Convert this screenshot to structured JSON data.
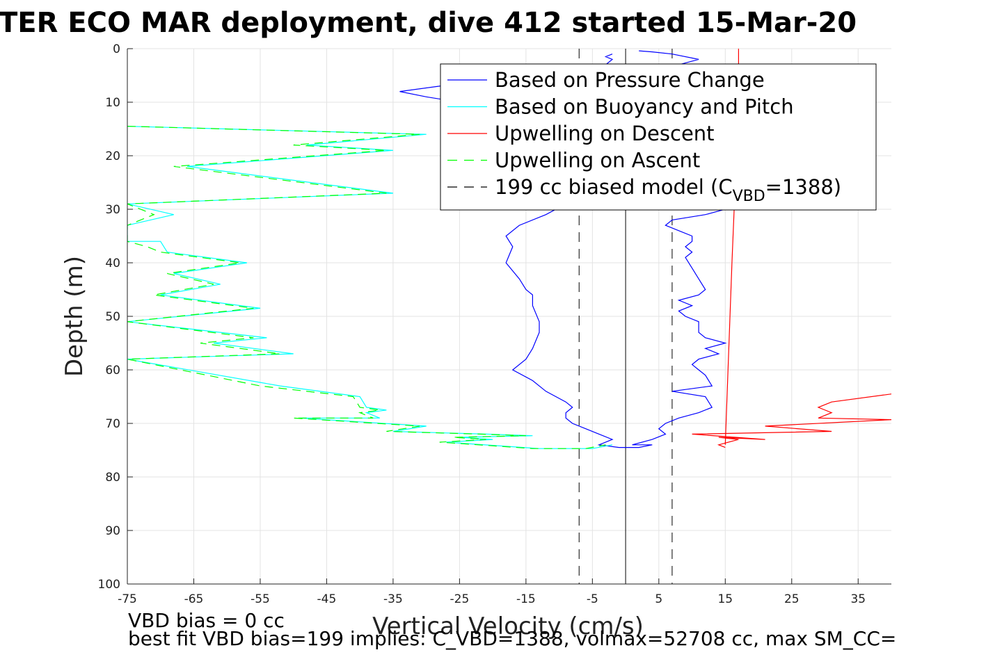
{
  "figure": {
    "title": "TER ECO MAR deployment, dive 412 started 15-Mar-20",
    "footnote_1": "VBD bias = 0 cc",
    "footnote_2": "best fit VBD bias=199 implies: C_VBD=1388, volmax=52708 cc, max SM_CC="
  },
  "chart_data": {
    "type": "line",
    "xlabel": "Vertical Velocity (cm/s)",
    "ylabel": "Depth (m)",
    "xlim": [
      -75,
      40
    ],
    "ylim": [
      0,
      100
    ],
    "y_reversed": true,
    "grid": true,
    "xticks": [
      -75,
      -65,
      -55,
      -45,
      -35,
      -25,
      -15,
      -5,
      5,
      15,
      25,
      35
    ],
    "yticks": [
      0,
      10,
      20,
      30,
      40,
      50,
      60,
      70,
      80,
      90,
      100
    ],
    "legend": {
      "placement": "top-right",
      "entries": [
        {
          "text": "Based on Pressure Change",
          "color": "#0000ff",
          "style": "solid"
        },
        {
          "text": "Based on Buoyancy and Pitch",
          "color": "#00ffff",
          "style": "solid"
        },
        {
          "text": "Upwelling on Descent",
          "color": "#ff0000",
          "style": "solid"
        },
        {
          "text": "Upwelling on Ascent",
          "color": "#00ff00",
          "style": "dashed"
        },
        {
          "text": "199 cc biased model (C",
          "sub": "VBD",
          "suffix": "=1388)",
          "color": "#000000",
          "style": "dashed"
        }
      ]
    },
    "series": [
      {
        "name": "Based on Pressure Change",
        "color": "#0000ff",
        "style": "solid",
        "points": [
          [
            -2,
            1
          ],
          [
            -3,
            1.5
          ],
          [
            -2,
            2
          ],
          [
            -3,
            3
          ],
          [
            -4,
            4
          ],
          [
            -8,
            5
          ],
          [
            -15,
            5.5
          ],
          [
            -22,
            6
          ],
          [
            -28,
            7
          ],
          [
            -34,
            8
          ],
          [
            -30,
            9
          ],
          [
            -25,
            10
          ],
          [
            -22,
            11
          ],
          [
            -20,
            12
          ],
          [
            -18,
            14
          ],
          [
            -15,
            16
          ],
          [
            -12,
            18
          ],
          [
            -10,
            20
          ],
          [
            -9,
            25
          ],
          [
            -9,
            29
          ],
          [
            -12,
            31
          ],
          [
            -16,
            33
          ],
          [
            -18,
            35
          ],
          [
            -17,
            37
          ],
          [
            -18,
            40
          ],
          [
            -16,
            43
          ],
          [
            -15,
            45
          ],
          [
            -14,
            46
          ],
          [
            -14,
            48
          ],
          [
            -13,
            51
          ],
          [
            -13,
            53
          ],
          [
            -14,
            56
          ],
          [
            -15,
            58
          ],
          [
            -17,
            60
          ],
          [
            -14,
            62
          ],
          [
            -12,
            64
          ],
          [
            -9,
            66
          ],
          [
            -8,
            67
          ],
          [
            -9,
            68
          ],
          [
            -9,
            69
          ],
          [
            -8,
            70
          ],
          [
            -6,
            71
          ],
          [
            -4,
            72
          ],
          [
            -2,
            73
          ],
          [
            -4,
            74
          ],
          [
            -1,
            74.5
          ],
          [
            2,
            74.5
          ],
          [
            4,
            74
          ],
          [
            1,
            74
          ],
          [
            4,
            73
          ],
          [
            6,
            72
          ],
          [
            5,
            71
          ],
          [
            6,
            70
          ],
          [
            8,
            69
          ],
          [
            11,
            68
          ],
          [
            13,
            67
          ],
          [
            12,
            65
          ],
          [
            7,
            64
          ],
          [
            13,
            63
          ],
          [
            12,
            61
          ],
          [
            11,
            60
          ],
          [
            10,
            59
          ],
          [
            11,
            58
          ],
          [
            14,
            57
          ],
          [
            12,
            56
          ],
          [
            15,
            55
          ],
          [
            12,
            54
          ],
          [
            11,
            53
          ],
          [
            11,
            51
          ],
          [
            9,
            50
          ],
          [
            8,
            49
          ],
          [
            10,
            48
          ],
          [
            8,
            47
          ],
          [
            11,
            46
          ],
          [
            12,
            45
          ],
          [
            11,
            43
          ],
          [
            10,
            41
          ],
          [
            9,
            39
          ],
          [
            10,
            38
          ],
          [
            9,
            37
          ],
          [
            10,
            36
          ],
          [
            10,
            35
          ],
          [
            8,
            34
          ],
          [
            6,
            33
          ],
          [
            7,
            32
          ],
          [
            12,
            31
          ],
          [
            15,
            30
          ],
          [
            18,
            28
          ],
          [
            20,
            26
          ],
          [
            22,
            22
          ],
          [
            24,
            20
          ],
          [
            22,
            17
          ],
          [
            20,
            14
          ],
          [
            18,
            12
          ],
          [
            16,
            10
          ],
          [
            14,
            8
          ],
          [
            13,
            6
          ],
          [
            12,
            5
          ],
          [
            10,
            4
          ],
          [
            8,
            3
          ],
          [
            11,
            2
          ],
          [
            7,
            1
          ],
          [
            4,
            0.6
          ],
          [
            2,
            0.4
          ]
        ]
      },
      {
        "name": "Based on Buoyancy and Pitch",
        "color": "#00ffff",
        "style": "solid",
        "points": [
          [
            -75,
            14.5
          ],
          [
            -30,
            16
          ],
          [
            -48,
            18
          ],
          [
            -35,
            19
          ],
          [
            -66,
            22
          ],
          [
            -35,
            27
          ],
          [
            -75,
            29
          ],
          [
            -68,
            31
          ],
          [
            -75,
            33
          ],
          [
            -75,
            36
          ],
          [
            -70,
            36
          ],
          [
            -69,
            38
          ],
          [
            -57,
            40
          ],
          [
            -68,
            42
          ],
          [
            -61,
            44
          ],
          [
            -70,
            46
          ],
          [
            -55,
            48.5
          ],
          [
            -75,
            51
          ],
          [
            -54,
            54
          ],
          [
            -62,
            55
          ],
          [
            -50,
            57
          ],
          [
            -75,
            58
          ],
          [
            -52,
            63
          ],
          [
            -40,
            65
          ],
          [
            -39,
            67
          ],
          [
            -36,
            67.5
          ],
          [
            -39,
            68
          ],
          [
            -37,
            69
          ],
          [
            -49,
            69
          ],
          [
            -30,
            70.5
          ],
          [
            -35,
            71.5
          ],
          [
            -21,
            72
          ],
          [
            -14,
            72.3
          ],
          [
            -25,
            72.6
          ],
          [
            -20,
            73
          ],
          [
            -27,
            73.5
          ],
          [
            -13,
            74.7
          ],
          [
            -5,
            74.7
          ],
          [
            -2,
            74
          ]
        ]
      },
      {
        "name": "Upwelling on Descent",
        "color": "#ff0000",
        "style": "solid",
        "points": [
          [
            15,
            74.5
          ],
          [
            14,
            74
          ],
          [
            17,
            73
          ],
          [
            14,
            72.6
          ],
          [
            21,
            73
          ],
          [
            10,
            72
          ],
          [
            31,
            71.5
          ],
          [
            21,
            70.5
          ],
          [
            40,
            69.3
          ],
          [
            29,
            69
          ],
          [
            31,
            68
          ],
          [
            29,
            67
          ],
          [
            31,
            66
          ],
          [
            40,
            64.5
          ]
        ]
      },
      {
        "name": "Upwelling on Descent (tail)",
        "color": "#ff0000",
        "style": "solid",
        "points": [
          [
            15,
            74
          ],
          [
            16,
            40
          ],
          [
            17,
            10
          ],
          [
            17,
            0
          ]
        ]
      },
      {
        "name": "Upwelling on Ascent",
        "color": "#00ff00",
        "style": "dashed",
        "points": [
          [
            -75,
            14.5
          ],
          [
            -31,
            16
          ],
          [
            -50,
            18
          ],
          [
            -36,
            19
          ],
          [
            -68,
            22
          ],
          [
            -36,
            27
          ],
          [
            -75,
            29
          ],
          [
            -71,
            31
          ],
          [
            -75,
            33
          ],
          [
            -75,
            36
          ],
          [
            -72,
            37
          ],
          [
            -70,
            38
          ],
          [
            -58,
            40
          ],
          [
            -69,
            42
          ],
          [
            -62,
            44
          ],
          [
            -71,
            46
          ],
          [
            -56,
            48.5
          ],
          [
            -75,
            51
          ],
          [
            -56,
            54
          ],
          [
            -64,
            55
          ],
          [
            -52,
            57
          ],
          [
            -75,
            58
          ],
          [
            -55,
            63
          ],
          [
            -41,
            65
          ],
          [
            -40,
            67
          ],
          [
            -37,
            67.5
          ],
          [
            -40,
            68
          ],
          [
            -38,
            69
          ],
          [
            -50,
            69
          ],
          [
            -31,
            70.5
          ],
          [
            -36,
            71.5
          ],
          [
            -22,
            72
          ],
          [
            -15,
            72.3
          ],
          [
            -26,
            72.6
          ],
          [
            -21,
            73
          ],
          [
            -28,
            73.5
          ],
          [
            -14,
            74.7
          ],
          [
            -6,
            74.7
          ],
          [
            -3,
            74
          ]
        ]
      }
    ],
    "reference_lines": [
      {
        "x": -7,
        "style": "dashed",
        "color": "#000000"
      },
      {
        "x": 0,
        "style": "solid",
        "color": "#000000"
      },
      {
        "x": 7,
        "style": "dashed",
        "color": "#000000"
      }
    ]
  }
}
